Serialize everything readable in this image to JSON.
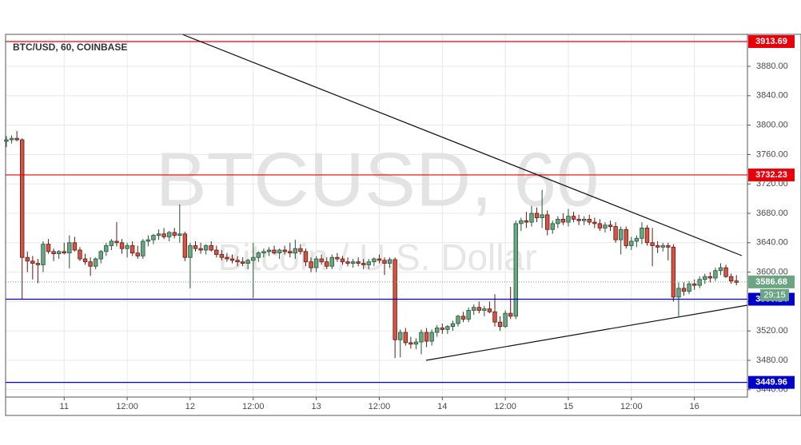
{
  "chart_data": {
    "type": "candlestick",
    "title": "BTC/USD, 60, COINBASE",
    "watermark": "BTCUSD, 60",
    "watermark_subtitle": "Bitcoin / U.S. Dollar",
    "up_color": "#6ba583",
    "down_color": "#d75442",
    "grid": true,
    "ylim": [
      3430,
      3923.5
    ],
    "yticks": [
      {
        "value": 3440,
        "label": "3440.00"
      },
      {
        "value": 3480,
        "label": "3480.00"
      },
      {
        "value": 3520,
        "label": "3520.00"
      },
      {
        "value": 3560,
        "label": "3560.00"
      },
      {
        "value": 3600,
        "label": "3600.00"
      },
      {
        "value": 3640,
        "label": "3640.00"
      },
      {
        "value": 3680,
        "label": "3680.00"
      },
      {
        "value": 3720,
        "label": "3720.00"
      },
      {
        "value": 3760,
        "label": "3760.00"
      },
      {
        "value": 3800,
        "label": "3800.00"
      },
      {
        "value": 3840,
        "label": "3840.00"
      },
      {
        "value": 3880,
        "label": "3880.00"
      }
    ],
    "xlim": [
      -0.15,
      141.1
    ],
    "xticks": [
      11,
      {
        "value": 23,
        "label": "12:00"
      },
      {
        "value": 35,
        "label": "12"
      },
      {
        "value": 47,
        "label": "12:00"
      },
      {
        "value": 59,
        "label": "13"
      },
      {
        "value": 71,
        "label": "12:00"
      },
      {
        "value": 83,
        "label": "14"
      },
      {
        "value": 95,
        "label": "12:00"
      },
      {
        "value": 107,
        "label": "15"
      },
      {
        "value": 119,
        "label": "12:00"
      },
      {
        "value": 131,
        "label": "16"
      }
    ],
    "levels": [
      {
        "value": 3913.69,
        "color": "#e8000b"
      },
      {
        "value": 3732.23,
        "color": "#e8000b"
      },
      {
        "value": 3563.14,
        "color": "#0000c8"
      },
      {
        "value": 3449.96,
        "color": "#0000c8"
      }
    ],
    "last_price": 3586.68,
    "last_price_color": "#6ba583",
    "countdown": "29:15",
    "candles": [
      [
        3778,
        3785,
        3770,
        3780
      ],
      [
        3780,
        3786,
        3775,
        3782
      ],
      [
        3782,
        3792,
        3778,
        3780
      ],
      [
        3780,
        3782,
        3563,
        3620
      ],
      [
        3620,
        3628,
        3600,
        3615
      ],
      [
        3615,
        3622,
        3590,
        3612
      ],
      [
        3612,
        3618,
        3585,
        3610
      ],
      [
        3610,
        3642,
        3600,
        3638
      ],
      [
        3638,
        3645,
        3625,
        3628
      ],
      [
        3628,
        3632,
        3615,
        3625
      ],
      [
        3625,
        3630,
        3618,
        3628
      ],
      [
        3628,
        3640,
        3624,
        3626
      ],
      [
        3626,
        3650,
        3605,
        3640
      ],
      [
        3640,
        3648,
        3628,
        3630
      ],
      [
        3630,
        3634,
        3615,
        3618
      ],
      [
        3618,
        3625,
        3610,
        3614
      ],
      [
        3614,
        3620,
        3595,
        3608
      ],
      [
        3608,
        3620,
        3604,
        3618
      ],
      [
        3618,
        3630,
        3612,
        3628
      ],
      [
        3628,
        3640,
        3622,
        3636
      ],
      [
        3636,
        3645,
        3630,
        3642
      ],
      [
        3642,
        3668,
        3635,
        3640
      ],
      [
        3640,
        3645,
        3625,
        3632
      ],
      [
        3632,
        3640,
        3620,
        3636
      ],
      [
        3636,
        3642,
        3622,
        3626
      ],
      [
        3626,
        3636,
        3618,
        3622
      ],
      [
        3622,
        3645,
        3618,
        3642
      ],
      [
        3642,
        3650,
        3635,
        3644
      ],
      [
        3644,
        3652,
        3638,
        3650
      ],
      [
        3650,
        3658,
        3644,
        3652
      ],
      [
        3652,
        3660,
        3645,
        3648
      ],
      [
        3648,
        3656,
        3642,
        3654
      ],
      [
        3654,
        3660,
        3646,
        3650
      ],
      [
        3650,
        3692,
        3640,
        3652
      ],
      [
        3652,
        3655,
        3615,
        3620
      ],
      [
        3620,
        3640,
        3578,
        3636
      ],
      [
        3636,
        3642,
        3628,
        3632
      ],
      [
        3632,
        3640,
        3625,
        3630
      ],
      [
        3630,
        3638,
        3624,
        3636
      ],
      [
        3636,
        3642,
        3628,
        3630
      ],
      [
        3630,
        3636,
        3620,
        3624
      ],
      [
        3624,
        3630,
        3616,
        3620
      ],
      [
        3620,
        3626,
        3614,
        3618
      ],
      [
        3618,
        3624,
        3612,
        3616
      ],
      [
        3616,
        3622,
        3608,
        3614
      ],
      [
        3614,
        3620,
        3608,
        3612
      ],
      [
        3612,
        3618,
        3604,
        3616
      ],
      [
        3616,
        3640,
        3565,
        3620
      ],
      [
        3620,
        3628,
        3614,
        3626
      ],
      [
        3626,
        3632,
        3620,
        3628
      ],
      [
        3628,
        3634,
        3622,
        3630
      ],
      [
        3630,
        3636,
        3624,
        3626
      ],
      [
        3626,
        3632,
        3618,
        3630
      ],
      [
        3630,
        3636,
        3624,
        3628
      ],
      [
        3628,
        3640,
        3620,
        3626
      ],
      [
        3626,
        3644,
        3618,
        3632
      ],
      [
        3632,
        3638,
        3624,
        3628
      ],
      [
        3628,
        3632,
        3608,
        3614
      ],
      [
        3614,
        3620,
        3600,
        3606
      ],
      [
        3606,
        3622,
        3600,
        3618
      ],
      [
        3618,
        3624,
        3610,
        3614
      ],
      [
        3614,
        3620,
        3604,
        3608
      ],
      [
        3608,
        3624,
        3604,
        3620
      ],
      [
        3620,
        3626,
        3614,
        3618
      ],
      [
        3618,
        3622,
        3610,
        3614
      ],
      [
        3614,
        3620,
        3608,
        3612
      ],
      [
        3612,
        3618,
        3606,
        3614
      ],
      [
        3614,
        3620,
        3608,
        3612
      ],
      [
        3612,
        3618,
        3604,
        3610
      ],
      [
        3610,
        3618,
        3604,
        3614
      ],
      [
        3614,
        3620,
        3608,
        3618
      ],
      [
        3618,
        3624,
        3612,
        3616
      ],
      [
        3616,
        3620,
        3596,
        3612
      ],
      [
        3612,
        3620,
        3606,
        3617
      ],
      [
        3617,
        3620,
        3483,
        3508
      ],
      [
        3508,
        3522,
        3484,
        3518
      ],
      [
        3518,
        3524,
        3500,
        3504
      ],
      [
        3504,
        3512,
        3496,
        3502
      ],
      [
        3502,
        3510,
        3495,
        3505
      ],
      [
        3505,
        3522,
        3488,
        3518
      ],
      [
        3518,
        3524,
        3498,
        3506
      ],
      [
        3506,
        3522,
        3500,
        3518
      ],
      [
        3518,
        3528,
        3512,
        3524
      ],
      [
        3524,
        3530,
        3516,
        3522
      ],
      [
        3522,
        3528,
        3516,
        3526
      ],
      [
        3526,
        3534,
        3520,
        3530
      ],
      [
        3530,
        3542,
        3526,
        3540
      ],
      [
        3540,
        3546,
        3532,
        3536
      ],
      [
        3536,
        3552,
        3532,
        3548
      ],
      [
        3548,
        3556,
        3542,
        3552
      ],
      [
        3552,
        3560,
        3544,
        3548
      ],
      [
        3548,
        3554,
        3540,
        3550
      ],
      [
        3550,
        3560,
        3544,
        3546
      ],
      [
        3546,
        3570,
        3526,
        3532
      ],
      [
        3532,
        3540,
        3520,
        3526
      ],
      [
        3526,
        3548,
        3524,
        3544
      ],
      [
        3544,
        3580,
        3536,
        3540
      ],
      [
        3540,
        3670,
        3536,
        3666
      ],
      [
        3666,
        3674,
        3656,
        3670
      ],
      [
        3670,
        3682,
        3660,
        3668
      ],
      [
        3668,
        3690,
        3662,
        3680
      ],
      [
        3680,
        3688,
        3668,
        3674
      ],
      [
        3674,
        3712,
        3660,
        3678
      ],
      [
        3678,
        3684,
        3650,
        3658
      ],
      [
        3658,
        3670,
        3652,
        3666
      ],
      [
        3666,
        3676,
        3660,
        3672
      ],
      [
        3672,
        3680,
        3664,
        3668
      ],
      [
        3668,
        3686,
        3662,
        3676
      ],
      [
        3676,
        3682,
        3668,
        3672
      ],
      [
        3672,
        3678,
        3664,
        3670
      ],
      [
        3670,
        3676,
        3664,
        3672
      ],
      [
        3672,
        3678,
        3664,
        3668
      ],
      [
        3668,
        3674,
        3660,
        3666
      ],
      [
        3666,
        3672,
        3656,
        3660
      ],
      [
        3660,
        3668,
        3654,
        3664
      ],
      [
        3664,
        3670,
        3656,
        3662
      ],
      [
        3662,
        3668,
        3640,
        3644
      ],
      [
        3644,
        3662,
        3624,
        3658
      ],
      [
        3658,
        3662,
        3632,
        3636
      ],
      [
        3636,
        3648,
        3630,
        3642
      ],
      [
        3642,
        3650,
        3634,
        3646
      ],
      [
        3646,
        3668,
        3638,
        3660
      ],
      [
        3660,
        3664,
        3636,
        3640
      ],
      [
        3640,
        3660,
        3608,
        3636
      ],
      [
        3636,
        3642,
        3626,
        3634
      ],
      [
        3634,
        3640,
        3628,
        3636
      ],
      [
        3636,
        3640,
        3616,
        3634
      ],
      [
        3634,
        3638,
        3560,
        3566
      ],
      [
        3566,
        3586,
        3540,
        3578
      ],
      [
        3578,
        3586,
        3568,
        3574
      ],
      [
        3574,
        3588,
        3570,
        3584
      ],
      [
        3584,
        3590,
        3576,
        3582
      ],
      [
        3582,
        3594,
        3578,
        3590
      ],
      [
        3590,
        3598,
        3584,
        3594
      ],
      [
        3594,
        3600,
        3586,
        3592
      ],
      [
        3592,
        3606,
        3588,
        3602
      ],
      [
        3602,
        3612,
        3596,
        3606
      ],
      [
        3606,
        3610,
        3592,
        3594
      ],
      [
        3594,
        3598,
        3584,
        3588
      ],
      [
        3588,
        3596,
        3582,
        3586
      ]
    ]
  }
}
